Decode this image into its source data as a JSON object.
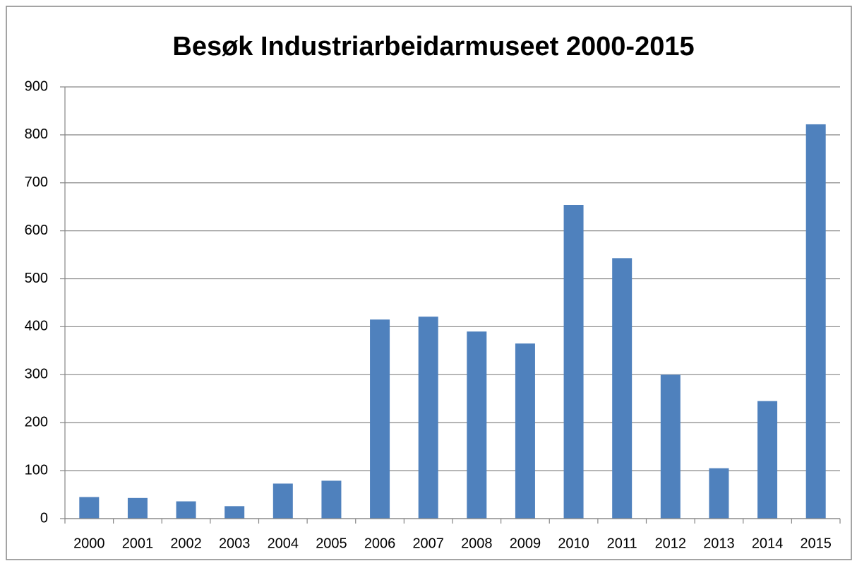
{
  "chart_data": {
    "type": "bar",
    "title": "Besøk Industriarbeidarmuseet 2000-2015",
    "categories": [
      "2000",
      "2001",
      "2002",
      "2003",
      "2004",
      "2005",
      "2006",
      "2007",
      "2008",
      "2009",
      "2010",
      "2011",
      "2012",
      "2013",
      "2014",
      "2015"
    ],
    "values": [
      45,
      43,
      36,
      26,
      73,
      79,
      415,
      421,
      390,
      365,
      654,
      543,
      300,
      105,
      245,
      822
    ],
    "color": "#4f81bd",
    "ylim": [
      0,
      900
    ],
    "yticks": [
      0,
      100,
      200,
      300,
      400,
      500,
      600,
      700,
      800,
      900
    ],
    "grid": true
  }
}
